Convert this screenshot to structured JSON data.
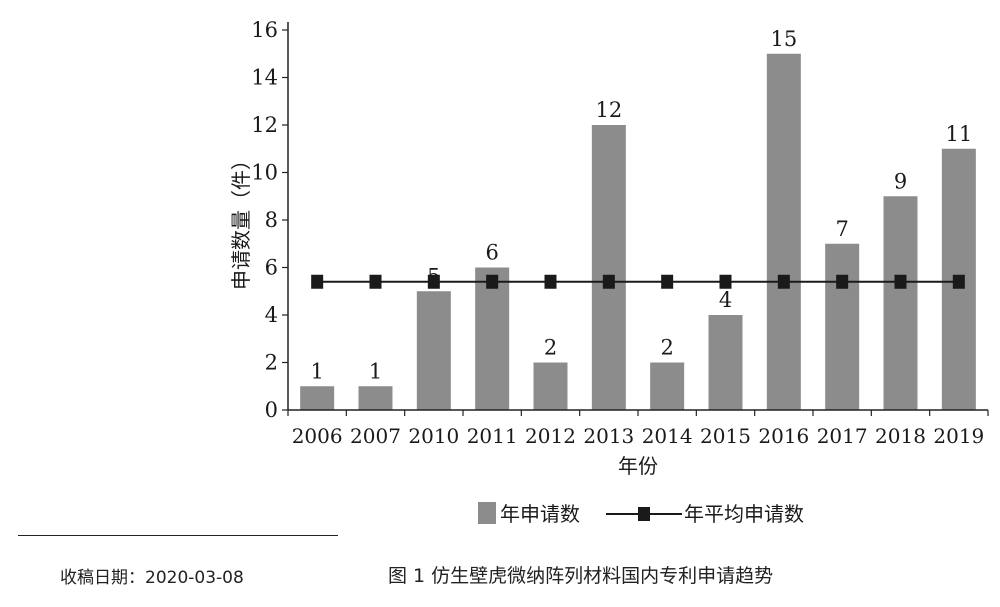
{
  "chart_data": {
    "type": "bar",
    "title": "",
    "xlabel": "年份",
    "ylabel": "申请数量（件）",
    "categories": [
      "2006",
      "2007",
      "2010",
      "2011",
      "2012",
      "2013",
      "2014",
      "2015",
      "2016",
      "2017",
      "2018",
      "2019"
    ],
    "series": [
      {
        "name": "年申请数",
        "type": "bar",
        "values": [
          1,
          1,
          5,
          6,
          2,
          12,
          2,
          4,
          15,
          7,
          9,
          11
        ],
        "data_labels": true,
        "color": "#8c8c8c"
      },
      {
        "name": "年平均申请数",
        "type": "line",
        "marker": "square",
        "values": [
          5.4,
          5.4,
          5.4,
          5.4,
          5.4,
          5.4,
          5.4,
          5.4,
          5.4,
          5.4,
          5.4,
          5.4
        ],
        "color": "#1a1a1a"
      }
    ],
    "ylim": [
      0,
      16
    ],
    "yticks": [
      0,
      2,
      4,
      6,
      8,
      10,
      12,
      14,
      16
    ],
    "grid": false,
    "legend_position": "bottom"
  },
  "footnote": "收稿日期：2020-03-08",
  "caption": "图 1   仿生壁虎微纳阵列材料国内专利申请趋势"
}
